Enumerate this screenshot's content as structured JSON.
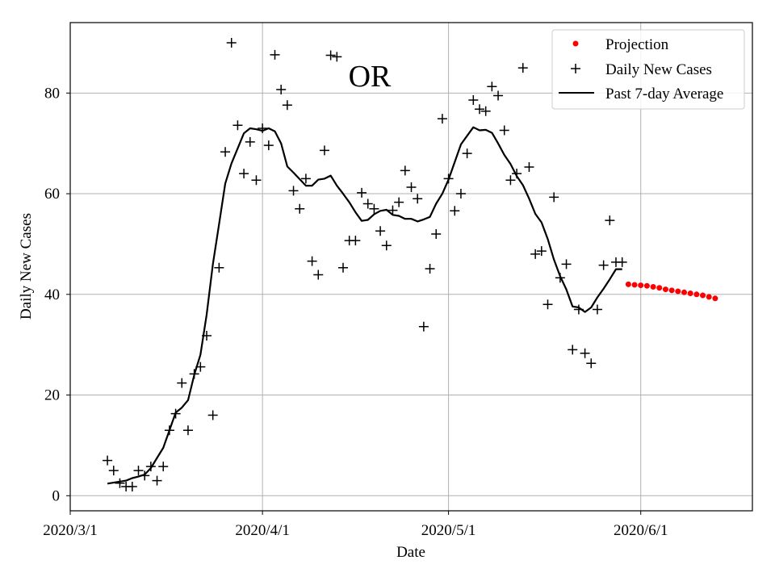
{
  "chart_data": {
    "type": "line",
    "title": "OR",
    "xlabel": "Date",
    "ylabel": "Daily New Cases",
    "x_range": [
      0,
      110
    ],
    "ylim": [
      -3,
      94
    ],
    "grid": true,
    "legend_position": "top-right",
    "x_ticks": [
      {
        "value": 0,
        "label": "2020/3/1"
      },
      {
        "value": 31,
        "label": "2020/4/1"
      },
      {
        "value": 61,
        "label": "2020/5/1"
      },
      {
        "value": 92,
        "label": "2020/6/1"
      }
    ],
    "y_ticks": [
      0,
      20,
      40,
      60,
      80
    ],
    "series": [
      {
        "name": "Projection",
        "style": "red-dots",
        "color": "#ff0000",
        "x": [
          90,
          91,
          92,
          93,
          94,
          95,
          96,
          97,
          98,
          99,
          100,
          101,
          102,
          103,
          104
        ],
        "values": [
          42.0,
          41.9,
          41.8,
          41.7,
          41.5,
          41.3,
          41.0,
          40.8,
          40.6,
          40.4,
          40.2,
          40.0,
          39.8,
          39.5,
          39.2
        ]
      },
      {
        "name": "Daily New Cases",
        "style": "plus-markers",
        "color": "#000000",
        "x": [
          6,
          7,
          8,
          9,
          10,
          11,
          12,
          13,
          14,
          15,
          16,
          17,
          18,
          19,
          20,
          21,
          22,
          23,
          24,
          25,
          26,
          27,
          28,
          29,
          30,
          31,
          32,
          33,
          34,
          35,
          36,
          37,
          38,
          39,
          40,
          41,
          42,
          43,
          44,
          45,
          46,
          47,
          48,
          49,
          50,
          51,
          52,
          53,
          54,
          55,
          56,
          57,
          58,
          59,
          60,
          61,
          62,
          63,
          64,
          65,
          66,
          67,
          68,
          69,
          70,
          71,
          72,
          73,
          74,
          75,
          76,
          77,
          78,
          79,
          80,
          81,
          82,
          83,
          84,
          85,
          86,
          87,
          88,
          89
        ],
        "values": [
          7,
          5,
          2.5,
          1.8,
          1.8,
          5,
          4,
          5.8,
          3,
          5.8,
          13,
          16.3,
          22.4,
          13,
          24.2,
          25.6,
          31.8,
          16,
          45.3,
          68.3,
          90,
          73.6,
          64,
          70.3,
          62.7,
          73,
          69.6,
          87.6,
          80.7,
          77.6,
          60.6,
          57,
          63,
          46.6,
          43.9,
          68.6,
          87.5,
          87.2,
          45.3,
          50.7,
          50.7,
          60.2,
          58,
          57,
          52.6,
          49.7,
          56.7,
          58.3,
          64.6,
          61.3,
          59,
          33.6,
          45.1,
          52,
          74.9,
          63,
          56.6,
          60,
          68,
          78.6,
          76.8,
          76.4,
          81.3,
          79.5,
          72.6,
          62.7,
          64,
          85,
          65.3,
          48,
          48.6,
          38,
          59.3,
          43.3,
          46,
          29,
          37,
          28.3,
          26.3,
          37,
          45.8,
          54.7,
          46.4,
          46.4
        ]
      },
      {
        "name": "Past 7-day Average",
        "style": "line",
        "color": "#000000",
        "x": [
          6,
          7,
          8,
          9,
          10,
          11,
          12,
          13,
          14,
          15,
          16,
          17,
          18,
          19,
          20,
          21,
          22,
          23,
          24,
          25,
          26,
          27,
          28,
          29,
          30,
          31,
          32,
          33,
          34,
          35,
          36,
          37,
          38,
          39,
          40,
          41,
          42,
          43,
          44,
          45,
          46,
          47,
          48,
          49,
          50,
          51,
          52,
          53,
          54,
          55,
          56,
          57,
          58,
          59,
          60,
          61,
          62,
          63,
          64,
          65,
          66,
          67,
          68,
          69,
          70,
          71,
          72,
          73,
          74,
          75,
          76,
          77,
          78,
          79,
          80,
          81,
          82,
          83,
          84,
          85,
          86,
          87,
          88,
          89
        ],
        "values": [
          2.4,
          2.6,
          2.8,
          3.0,
          3.5,
          3.8,
          4.2,
          5.5,
          7.5,
          9.5,
          13,
          16.5,
          17.5,
          19,
          24,
          28,
          36,
          46,
          54,
          62,
          66,
          69,
          72,
          73,
          72.8,
          72.5,
          73,
          72.4,
          70,
          65.4,
          64.2,
          62.9,
          61.6,
          61.6,
          62.8,
          63,
          63.6,
          61.6,
          60,
          58.3,
          56.3,
          54.6,
          54.8,
          55.9,
          56.6,
          56.8,
          55.8,
          55.6,
          55,
          55,
          54.5,
          54.9,
          55.4,
          58,
          60,
          62.8,
          66.3,
          69.8,
          71.5,
          73.2,
          72.6,
          72.7,
          72.1,
          70,
          67.7,
          65.9,
          63.5,
          61.7,
          59,
          56,
          54.3,
          51,
          46.9,
          43.6,
          41,
          37.6,
          37.4,
          36.5,
          37.4,
          39.4,
          41.1,
          43,
          45,
          45
        ]
      }
    ]
  }
}
